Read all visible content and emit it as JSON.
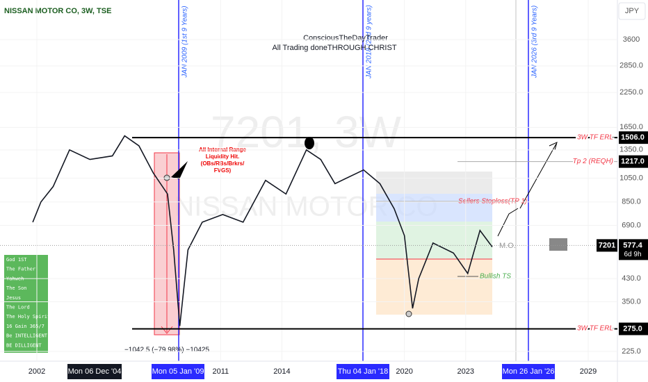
{
  "header": {
    "title": "NISSAN MOTOR CO, 3W, TSE",
    "currency": "JPY",
    "watermark_symbol": "7201, 3W",
    "watermark_name": "NISSAN MOTOR CO"
  },
  "annotations": {
    "author": "ConsciousTheDayTrader",
    "motto": "All Trading doneTHROUGH CHRIST",
    "cycle_1": "JAN 2009 (1st 9 Years)",
    "cycle_2": "JAN 2018 (2nd 9 years)",
    "cycle_3": "JAN 2026 (3rd 9 Years)",
    "liquidity": [
      "All Internal Range",
      "Liquidity Hit.",
      "(OBs/RBs/Brkrs/",
      "FVGS)"
    ],
    "measure": "−1042.5 (−79.98%) −10425",
    "sellers_stoploss": "Sellers Stoploss(TP 1)",
    "bullish_ts": "Bullish TS",
    "mo": "M.O.",
    "note_box": [
      "God 1ST",
      "The Father",
      "Yahweh",
      "The Son",
      "Jesus",
      "The Lord",
      "The Holy Spirit",
      "16 Gain 365/7",
      "Be INTELLIGENT",
      "BE DILLIGENT"
    ]
  },
  "price_axis": {
    "log": true,
    "ticks": [
      {
        "value": 225,
        "label": "225.0"
      },
      {
        "value": 350,
        "label": "350.0"
      },
      {
        "value": 430,
        "label": "430.0"
      },
      {
        "value": 690,
        "label": "690.0"
      },
      {
        "value": 850,
        "label": "850.0"
      },
      {
        "value": 1050,
        "label": "1050.0"
      },
      {
        "value": 1350,
        "label": "1350.0"
      },
      {
        "value": 1650,
        "label": "1650.0"
      },
      {
        "value": 2250,
        "label": "2250.0"
      },
      {
        "value": 2850,
        "label": "2850.0"
      },
      3600
    ]
  },
  "time_axis": {
    "ticks": [
      2002,
      2011,
      2014,
      2020,
      2023,
      2029
    ],
    "highlights": [
      "Mon 06 Dec '04",
      "Mon 05 Jan '09",
      "Thu 04 Jan '18",
      "Mon 26 Jan '26"
    ]
  },
  "levels": [
    {
      "label": "3W TF ERL",
      "value": 1506,
      "value_label": "1506.0"
    },
    {
      "label": "Tp 2 (REQH)",
      "value": 1217,
      "value_label": "1217.0"
    },
    {
      "label": "3W TF ERL",
      "value": 275,
      "value_label": "275.0"
    }
  ],
  "current": {
    "symbol": "7201",
    "value": 577.4,
    "value_label": "577.4",
    "countdown": "6d 9h"
  },
  "price_trace": {
    "x": [
      2001.8,
      2002.2,
      2002.8,
      2003.6,
      2004.6,
      2005.7,
      2006.3,
      2007.0,
      2007.7,
      2008.4,
      2008.7,
      2009.0,
      2009.4,
      2010.1,
      2011.1,
      2012.1,
      2013.2,
      2014.2,
      2015.2,
      2015.9,
      2016.6,
      2018.0,
      2018.8,
      2019.5,
      2020.0,
      2020.4,
      2020.7,
      2021.4,
      2022.4,
      2023.1,
      2023.7,
      2024.3
    ],
    "values": [
      710,
      850,
      975,
      1350,
      1240,
      1280,
      1530,
      1400,
      1100,
      912,
      555,
      282,
      555,
      710,
      760,
      710,
      1030,
      912,
      1350,
      1240,
      1000,
      1130,
      1000,
      800,
      630,
      330,
      430,
      590,
      540,
      450,
      660,
      570
    ]
  }
}
